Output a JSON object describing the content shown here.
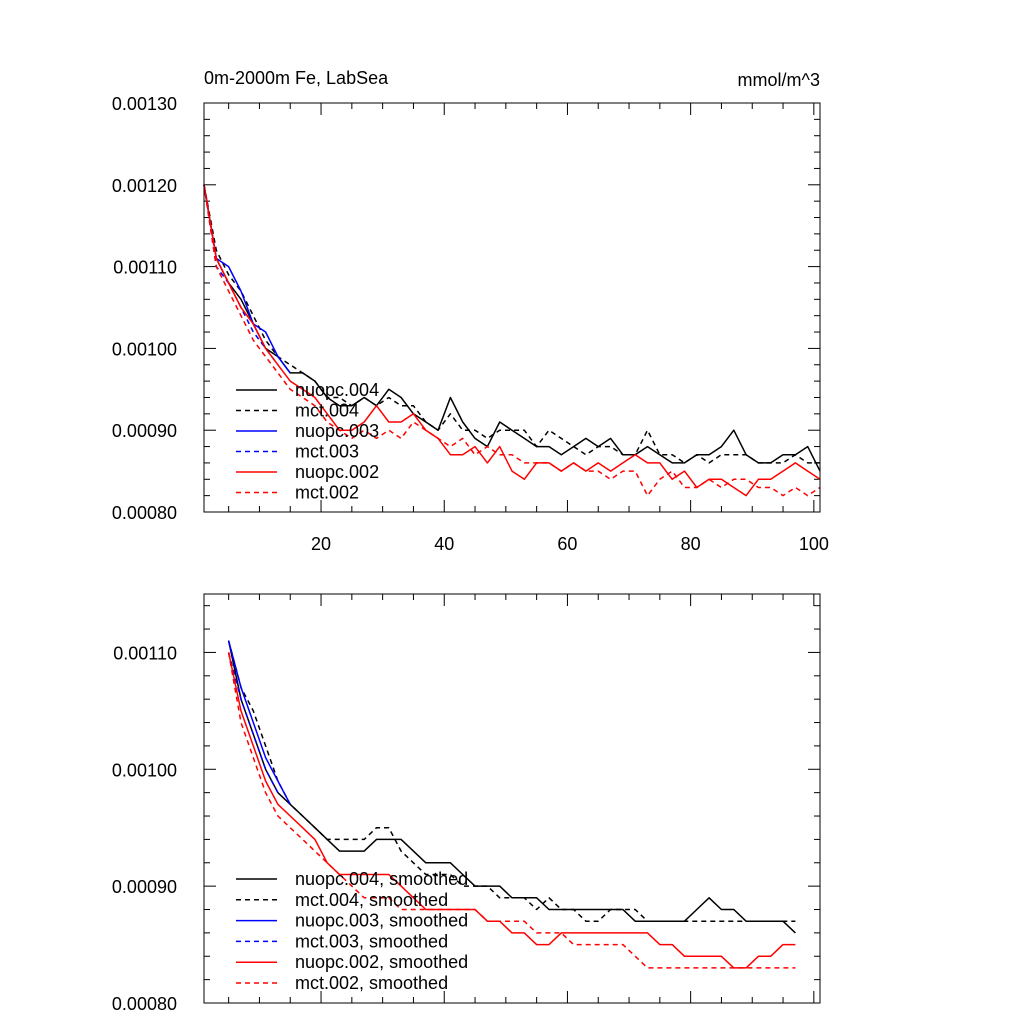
{
  "colors": {
    "black": "#000000",
    "blue": "#0000ff",
    "red": "#ff0000"
  },
  "chart_data": [
    {
      "type": "line",
      "title": "0m-2000m Fe, LabSea",
      "units": "mmol/m^3",
      "xlim": [
        1,
        101
      ],
      "ylim": [
        0.0008,
        0.0013
      ],
      "x_ticks": [
        20,
        40,
        60,
        80,
        100
      ],
      "x_tick_labels": [
        "20",
        "40",
        "60",
        "80",
        "100"
      ],
      "y_ticks": [
        0.0008,
        0.0009,
        0.001,
        0.0011,
        0.0012,
        0.0013
      ],
      "y_tick_labels": [
        "0.00080",
        "0.00090",
        "0.00100",
        "0.00110",
        "0.00120",
        "0.00130"
      ],
      "legend_position": "bottom-left",
      "series": [
        {
          "name": "nuopc.004",
          "color": "#000000",
          "dash": false,
          "x": [
            1,
            3,
            5,
            7,
            9,
            11,
            13,
            15,
            17,
            19,
            21,
            23,
            25,
            27,
            29,
            31,
            33,
            35,
            37,
            39,
            41,
            43,
            45,
            47,
            49,
            51,
            53,
            55,
            57,
            59,
            61,
            63,
            65,
            67,
            69,
            71,
            73,
            75,
            77,
            79,
            81,
            83,
            85,
            87,
            89,
            91,
            93,
            95,
            97,
            99,
            101
          ],
          "values": [
            0.0012,
            0.00111,
            0.00108,
            0.00106,
            0.00103,
            0.001,
            0.00099,
            0.00097,
            0.00097,
            0.00096,
            0.00094,
            0.00093,
            0.00093,
            0.00094,
            0.00093,
            0.00095,
            0.00094,
            0.00092,
            0.00091,
            0.0009,
            0.00094,
            0.00091,
            0.00089,
            0.00088,
            0.00091,
            0.0009,
            0.00089,
            0.00088,
            0.00088,
            0.00087,
            0.00088,
            0.00089,
            0.00088,
            0.00089,
            0.00087,
            0.00087,
            0.00088,
            0.00087,
            0.00086,
            0.00086,
            0.00087,
            0.00087,
            0.00088,
            0.0009,
            0.00087,
            0.00086,
            0.00086,
            0.00087,
            0.00087,
            0.00088,
            0.00085
          ]
        },
        {
          "name": "mct.004",
          "color": "#000000",
          "dash": true,
          "x": [
            1,
            3,
            5,
            7,
            9,
            11,
            13,
            15,
            17,
            19,
            21,
            23,
            25,
            27,
            29,
            31,
            33,
            35,
            37,
            39,
            41,
            43,
            45,
            47,
            49,
            51,
            53,
            55,
            57,
            59,
            61,
            63,
            65,
            67,
            69,
            71,
            73,
            75,
            77,
            79,
            81,
            83,
            85,
            87,
            89,
            91,
            93,
            95,
            97,
            99,
            101
          ],
          "values": [
            0.0012,
            0.00112,
            0.00109,
            0.00107,
            0.00104,
            0.00101,
            0.00099,
            0.00098,
            0.00097,
            0.00096,
            0.00094,
            0.00094,
            0.00093,
            0.00094,
            0.00093,
            0.00094,
            0.00093,
            0.00093,
            0.00091,
            0.0009,
            0.00092,
            0.0009,
            0.0009,
            0.00089,
            0.0009,
            0.0009,
            0.0009,
            0.00088,
            0.0009,
            0.00089,
            0.00088,
            0.00087,
            0.00088,
            0.00088,
            0.00087,
            0.00087,
            0.0009,
            0.00087,
            0.00087,
            0.00086,
            0.00087,
            0.00086,
            0.00087,
            0.00087,
            0.00087,
            0.00086,
            0.00086,
            0.00086,
            0.00087,
            0.00086,
            0.00086
          ]
        },
        {
          "name": "nuopc.003",
          "color": "#0000ff",
          "dash": false,
          "x": [
            1,
            3,
            5,
            7,
            9,
            11,
            13,
            15
          ],
          "values": [
            0.0012,
            0.00111,
            0.0011,
            0.00107,
            0.00103,
            0.00102,
            0.00099,
            0.00097
          ]
        },
        {
          "name": "mct.003",
          "color": "#0000ff",
          "dash": true,
          "x": [
            1,
            3,
            5,
            7,
            9,
            11,
            13
          ],
          "values": [
            0.0012,
            0.0011,
            0.00108,
            0.00105,
            0.00102,
            0.001,
            0.00098
          ]
        },
        {
          "name": "nuopc.002",
          "color": "#ff0000",
          "dash": false,
          "x": [
            1,
            3,
            5,
            7,
            9,
            11,
            13,
            15,
            17,
            19,
            21,
            23,
            25,
            27,
            29,
            31,
            33,
            35,
            37,
            39,
            41,
            43,
            45,
            47,
            49,
            51,
            53,
            55,
            57,
            59,
            61,
            63,
            65,
            67,
            69,
            71,
            73,
            75,
            77,
            79,
            81,
            83,
            85,
            87,
            89,
            91,
            93,
            95,
            97,
            99,
            101
          ],
          "values": [
            0.0012,
            0.00111,
            0.00108,
            0.00105,
            0.00103,
            0.001,
            0.00098,
            0.00096,
            0.00095,
            0.00094,
            0.00092,
            0.0009,
            0.0009,
            0.00091,
            0.00093,
            0.00091,
            0.00091,
            0.00092,
            0.0009,
            0.00089,
            0.00087,
            0.00087,
            0.00088,
            0.00086,
            0.00088,
            0.00085,
            0.00084,
            0.00086,
            0.00086,
            0.00085,
            0.00086,
            0.00085,
            0.00086,
            0.00085,
            0.00086,
            0.00087,
            0.00086,
            0.00086,
            0.00084,
            0.00085,
            0.00083,
            0.00084,
            0.00084,
            0.00083,
            0.00082,
            0.00084,
            0.00084,
            0.00085,
            0.00086,
            0.00085,
            0.00084
          ]
        },
        {
          "name": "mct.002",
          "color": "#ff0000",
          "dash": true,
          "x": [
            1,
            3,
            5,
            7,
            9,
            11,
            13,
            15,
            17,
            19,
            21,
            23,
            25,
            27,
            29,
            31,
            33,
            35,
            37,
            39,
            41,
            43,
            45,
            47,
            49,
            51,
            53,
            55,
            57,
            59,
            61,
            63,
            65,
            67,
            69,
            71,
            73,
            75,
            77,
            79,
            81,
            83,
            85,
            87,
            89,
            91,
            93,
            95,
            97,
            99,
            101
          ],
          "values": [
            0.0012,
            0.0011,
            0.00107,
            0.00104,
            0.00101,
            0.00099,
            0.00097,
            0.00095,
            0.00094,
            0.00093,
            0.00091,
            0.0009,
            0.00089,
            0.0009,
            0.00089,
            0.0009,
            0.00089,
            0.00091,
            0.0009,
            0.00089,
            0.00088,
            0.00089,
            0.00087,
            0.00088,
            0.00087,
            0.00087,
            0.00086,
            0.00086,
            0.00086,
            0.00085,
            0.00086,
            0.00085,
            0.00085,
            0.00084,
            0.00085,
            0.00085,
            0.00082,
            0.00084,
            0.00085,
            0.00083,
            0.00083,
            0.00084,
            0.00083,
            0.00084,
            0.00084,
            0.00083,
            0.00083,
            0.00082,
            0.00083,
            0.00082,
            0.00083
          ]
        }
      ]
    },
    {
      "type": "line",
      "title": "",
      "units": "",
      "xlim": [
        1,
        101
      ],
      "ylim": [
        0.0008,
        0.00115
      ],
      "x_ticks": [
        20,
        40,
        60,
        80,
        100
      ],
      "x_tick_labels": [],
      "y_ticks": [
        0.0008,
        0.0009,
        0.001,
        0.0011
      ],
      "y_tick_labels": [
        "0.00080",
        "0.00090",
        "0.00100",
        "0.00110"
      ],
      "legend_position": "bottom-left",
      "series": [
        {
          "name": "nuopc.004, smoothed",
          "color": "#000000",
          "dash": false,
          "x": [
            5,
            7,
            9,
            11,
            13,
            15,
            17,
            19,
            21,
            23,
            25,
            27,
            29,
            31,
            33,
            35,
            37,
            39,
            41,
            43,
            45,
            47,
            49,
            51,
            53,
            55,
            57,
            59,
            61,
            63,
            65,
            67,
            69,
            71,
            73,
            75,
            77,
            79,
            81,
            83,
            85,
            87,
            89,
            91,
            93,
            95,
            97
          ],
          "values": [
            0.00111,
            0.00106,
            0.00103,
            0.001,
            0.00098,
            0.00097,
            0.00096,
            0.00095,
            0.00094,
            0.00093,
            0.00093,
            0.00093,
            0.00094,
            0.00094,
            0.00094,
            0.00093,
            0.00092,
            0.00092,
            0.00092,
            0.00091,
            0.0009,
            0.0009,
            0.0009,
            0.00089,
            0.00089,
            0.00089,
            0.00088,
            0.00088,
            0.00088,
            0.00088,
            0.00088,
            0.00088,
            0.00088,
            0.00087,
            0.00087,
            0.00087,
            0.00087,
            0.00087,
            0.00088,
            0.00089,
            0.00088,
            0.00088,
            0.00087,
            0.00087,
            0.00087,
            0.00087,
            0.00086
          ]
        },
        {
          "name": "mct.004, smoothed",
          "color": "#000000",
          "dash": true,
          "x": [
            5,
            7,
            9,
            11,
            13,
            15,
            17,
            19,
            21,
            23,
            25,
            27,
            29,
            31,
            33,
            35,
            37,
            39,
            41,
            43,
            45,
            47,
            49,
            51,
            53,
            55,
            57,
            59,
            61,
            63,
            65,
            67,
            69,
            71,
            73,
            75,
            77,
            79,
            81,
            83,
            85,
            87,
            89,
            91,
            93,
            95,
            97
          ],
          "values": [
            0.00111,
            0.00107,
            0.00105,
            0.00102,
            0.00099,
            0.00097,
            0.00096,
            0.00095,
            0.00094,
            0.00094,
            0.00094,
            0.00094,
            0.00095,
            0.00095,
            0.00093,
            0.00092,
            0.00091,
            0.00091,
            0.00091,
            0.0009,
            0.0009,
            0.0009,
            0.00089,
            0.00089,
            0.00089,
            0.00088,
            0.00089,
            0.00088,
            0.00088,
            0.00087,
            0.00087,
            0.00088,
            0.00088,
            0.00088,
            0.00087,
            0.00087,
            0.00087,
            0.00087,
            0.00087,
            0.00087,
            0.00087,
            0.00087,
            0.00087,
            0.00087,
            0.00087,
            0.00087,
            0.00087
          ]
        },
        {
          "name": "nuopc.003, smoothed",
          "color": "#0000ff",
          "dash": false,
          "x": [
            5,
            7,
            9,
            11,
            13,
            15
          ],
          "values": [
            0.00111,
            0.00107,
            0.00104,
            0.00101,
            0.00099,
            0.00097
          ]
        },
        {
          "name": "mct.003, smoothed",
          "color": "#0000ff",
          "dash": true,
          "x": [
            5,
            7,
            9,
            11,
            13
          ],
          "values": [
            0.0011,
            0.00106,
            0.00103,
            0.001,
            0.00098
          ]
        },
        {
          "name": "nuopc.002, smoothed",
          "color": "#ff0000",
          "dash": false,
          "x": [
            5,
            7,
            9,
            11,
            13,
            15,
            17,
            19,
            21,
            23,
            25,
            27,
            29,
            31,
            33,
            35,
            37,
            39,
            41,
            43,
            45,
            47,
            49,
            51,
            53,
            55,
            57,
            59,
            61,
            63,
            65,
            67,
            69,
            71,
            73,
            75,
            77,
            79,
            81,
            83,
            85,
            87,
            89,
            91,
            93,
            95,
            97
          ],
          "values": [
            0.0011,
            0.00105,
            0.00102,
            0.00099,
            0.00097,
            0.00096,
            0.00095,
            0.00094,
            0.00092,
            0.00091,
            0.00091,
            0.00091,
            0.00091,
            0.00091,
            0.0009,
            0.00089,
            0.00088,
            0.00088,
            0.00088,
            0.00088,
            0.00088,
            0.00087,
            0.00087,
            0.00086,
            0.00086,
            0.00085,
            0.00085,
            0.00086,
            0.00086,
            0.00086,
            0.00086,
            0.00086,
            0.00086,
            0.00086,
            0.00086,
            0.00085,
            0.00085,
            0.00084,
            0.00084,
            0.00084,
            0.00084,
            0.00083,
            0.00083,
            0.00084,
            0.00084,
            0.00085,
            0.00085
          ]
        },
        {
          "name": "mct.002, smoothed",
          "color": "#ff0000",
          "dash": true,
          "x": [
            5,
            7,
            9,
            11,
            13,
            15,
            17,
            19,
            21,
            23,
            25,
            27,
            29,
            31,
            33,
            35,
            37,
            39,
            41,
            43,
            45,
            47,
            49,
            51,
            53,
            55,
            57,
            59,
            61,
            63,
            65,
            67,
            69,
            71,
            73,
            75,
            77,
            79,
            81,
            83,
            85,
            87,
            89,
            91,
            93,
            95,
            97
          ],
          "values": [
            0.0011,
            0.00104,
            0.00101,
            0.00098,
            0.00096,
            0.00095,
            0.00094,
            0.00093,
            0.00092,
            0.00091,
            0.0009,
            0.00089,
            0.00089,
            0.00089,
            0.00088,
            0.00088,
            0.00088,
            0.00088,
            0.00088,
            0.00088,
            0.00088,
            0.00087,
            0.00087,
            0.00087,
            0.00087,
            0.00086,
            0.00086,
            0.00086,
            0.00085,
            0.00085,
            0.00085,
            0.00085,
            0.00085,
            0.00084,
            0.00083,
            0.00083,
            0.00083,
            0.00083,
            0.00083,
            0.00083,
            0.00083,
            0.00083,
            0.00083,
            0.00083,
            0.00083,
            0.00083,
            0.00083
          ]
        }
      ]
    }
  ]
}
